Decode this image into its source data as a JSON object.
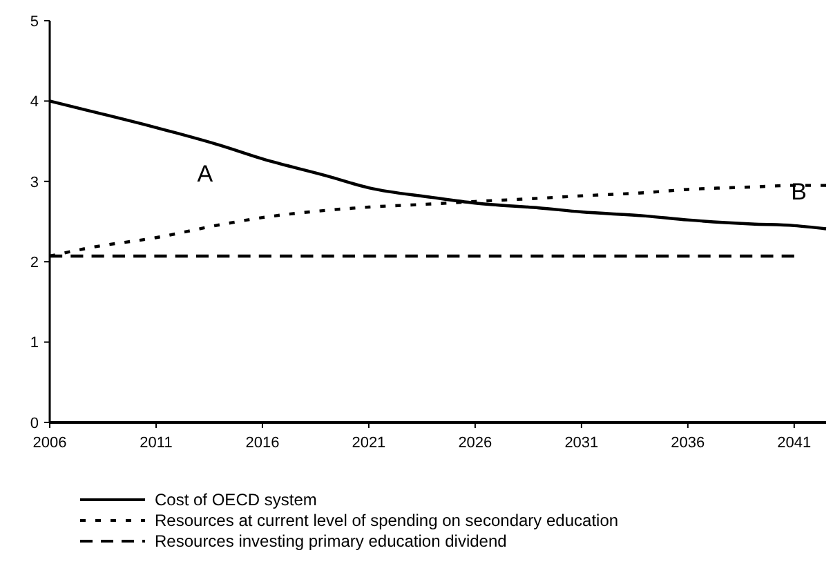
{
  "chart_data": {
    "type": "line",
    "x": [
      2006,
      2008,
      2011,
      2014,
      2016,
      2019,
      2021,
      2024,
      2026,
      2029,
      2031,
      2034,
      2036,
      2039,
      2041,
      2042.5
    ],
    "series": [
      {
        "name": "Cost of OECD system",
        "color": "#000000",
        "line_style": "solid",
        "values": [
          4.0,
          3.87,
          3.67,
          3.45,
          3.28,
          3.07,
          2.92,
          2.8,
          2.73,
          2.67,
          2.62,
          2.57,
          2.52,
          2.47,
          2.45,
          2.41
        ]
      },
      {
        "name": "Resources at current level of spending on secondary education",
        "color": "#000000",
        "line_style": "dotted",
        "values": [
          2.07,
          2.18,
          2.3,
          2.46,
          2.55,
          2.64,
          2.68,
          2.72,
          2.75,
          2.79,
          2.82,
          2.86,
          2.9,
          2.93,
          2.95,
          2.95
        ]
      },
      {
        "name": "Resources investing primary education dividend",
        "color": "#000000",
        "line_style": "dashed",
        "x": [
          2006,
          2041
        ],
        "values": [
          2.07,
          2.07
        ]
      }
    ],
    "xlim": [
      2006,
      2042.5
    ],
    "xticks": [
      2006,
      2011,
      2016,
      2021,
      2026,
      2031,
      2036,
      2041
    ],
    "ylim": [
      0,
      5
    ],
    "yticks": [
      0,
      1,
      2,
      3,
      4,
      5
    ],
    "grid": false,
    "legend": "bottom",
    "marker": "none",
    "annotations": [
      "A",
      "B"
    ]
  }
}
